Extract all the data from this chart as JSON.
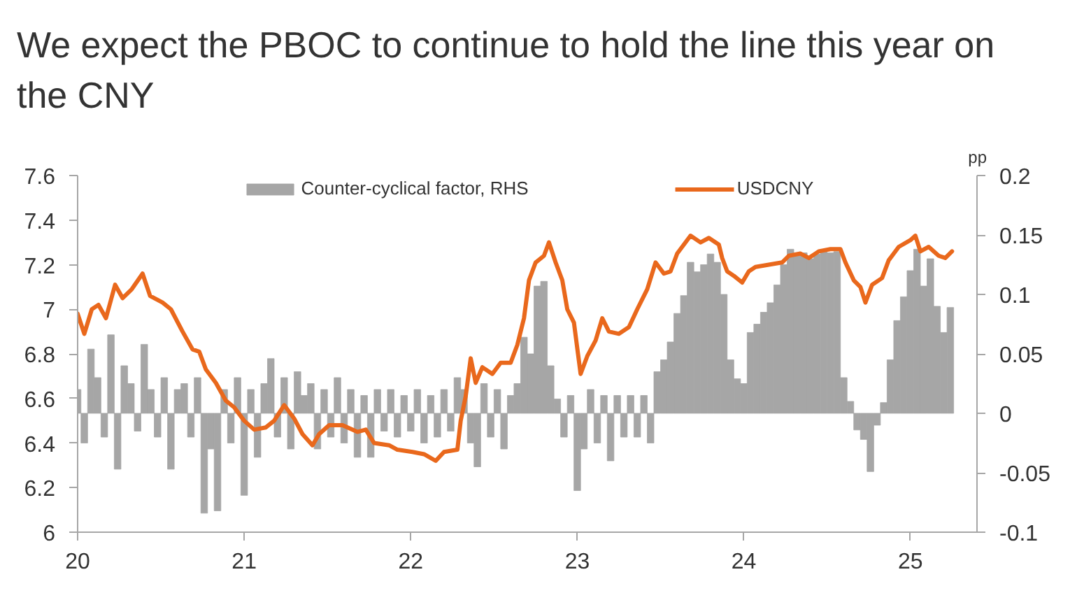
{
  "chart_data": {
    "type": "line",
    "title": "We expect the PBOC to continue to hold the line this year on the CNY",
    "y2label": "pp",
    "xlim": [
      20,
      25.4
    ],
    "xticks": [
      20,
      21,
      22,
      23,
      24,
      25
    ],
    "ylim": [
      6,
      7.6
    ],
    "yticks": [
      6,
      6.2,
      6.4,
      6.6,
      6.8,
      7,
      7.2,
      7.4,
      7.6
    ],
    "y2lim": [
      -0.1,
      0.2
    ],
    "y2ticks": [
      -0.1,
      -0.05,
      0,
      0.05,
      0.1,
      0.15,
      0.2
    ],
    "grid": false,
    "legend": "top",
    "series": [
      {
        "name": "Counter-cyclical factor, RHS",
        "type": "bar",
        "axis": "y2",
        "color": "#a6a6a6",
        "x": [
          20,
          20.04,
          20.08,
          20.12,
          20.16,
          20.2,
          20.24,
          20.28,
          20.32,
          20.36,
          20.4,
          20.44,
          20.48,
          20.52,
          20.56,
          20.6,
          20.64,
          20.68,
          20.72,
          20.76,
          20.8,
          20.84,
          20.88,
          20.92,
          20.96,
          21,
          21.04,
          21.08,
          21.12,
          21.16,
          21.2,
          21.24,
          21.28,
          21.32,
          21.36,
          21.4,
          21.44,
          21.48,
          21.52,
          21.56,
          21.6,
          21.64,
          21.68,
          21.72,
          21.76,
          21.8,
          21.84,
          21.88,
          21.92,
          21.96,
          22,
          22.04,
          22.08,
          22.12,
          22.16,
          22.2,
          22.24,
          22.28,
          22.32,
          22.36,
          22.4,
          22.44,
          22.48,
          22.52,
          22.56,
          22.6,
          22.64,
          22.68,
          22.72,
          22.76,
          22.8,
          22.84,
          22.88,
          22.92,
          22.96,
          23,
          23.04,
          23.08,
          23.12,
          23.16,
          23.2,
          23.24,
          23.28,
          23.32,
          23.36,
          23.4,
          23.44,
          23.48,
          23.52,
          23.56,
          23.6,
          23.64,
          23.68,
          23.72,
          23.76,
          23.8,
          23.84,
          23.88,
          23.92,
          23.96,
          24,
          24.04,
          24.08,
          24.12,
          24.16,
          24.2,
          24.24,
          24.28,
          24.32,
          24.36,
          24.4,
          24.44,
          24.48,
          24.52,
          24.56,
          24.6,
          24.64,
          24.68,
          24.72,
          24.76,
          24.8,
          24.84,
          24.88,
          24.92,
          24.96,
          25,
          25.04,
          25.08,
          25.12,
          25.16,
          25.2,
          25.24
        ],
        "values": [
          0.02,
          -0.025,
          0.054,
          0.03,
          -0.02,
          0.066,
          -0.047,
          0.04,
          0.025,
          -0.015,
          0.058,
          0.02,
          -0.02,
          0.03,
          -0.047,
          0.02,
          0.025,
          -0.02,
          0.03,
          -0.084,
          -0.03,
          -0.082,
          0.02,
          -0.025,
          0.03,
          -0.069,
          0.02,
          -0.037,
          0.025,
          0.046,
          -0.02,
          0.03,
          -0.03,
          0.035,
          0.015,
          0.025,
          -0.03,
          0.02,
          -0.02,
          0.03,
          -0.025,
          0.02,
          -0.037,
          0.015,
          -0.037,
          0.02,
          -0.015,
          0.02,
          -0.02,
          0.015,
          -0.015,
          0.02,
          -0.025,
          0.015,
          -0.02,
          0.02,
          -0.015,
          0.03,
          0.02,
          -0.025,
          -0.045,
          0.025,
          -0.02,
          0.02,
          -0.03,
          0.015,
          0.025,
          0.064,
          0.05,
          0.107,
          0.111,
          0.04,
          0.012,
          -0.02,
          0.015,
          -0.065,
          -0.03,
          0.02,
          -0.025,
          0.015,
          -0.04,
          0.015,
          -0.02,
          0.015,
          -0.02,
          0.015,
          -0.025,
          0.035,
          0.045,
          0.06,
          0.084,
          0.099,
          0.127,
          0.119,
          0.125,
          0.134,
          0.127,
          0.1,
          0.045,
          0.029,
          0.025,
          0.068,
          0.075,
          0.085,
          0.093,
          0.108,
          0.125,
          0.138,
          0.133,
          0.135,
          0.13,
          0.134,
          0.136,
          0.135,
          0.136,
          0.03,
          0.01,
          -0.014,
          -0.022,
          -0.049,
          -0.01,
          0.009,
          0.045,
          0.078,
          0.098,
          0.12,
          0.138,
          0.107,
          0.13,
          0.09,
          0.068,
          0.089
        ]
      },
      {
        "name": "USDCNY",
        "color": "#e9681c",
        "x": [
          20,
          20.04,
          20.085,
          20.125,
          20.17,
          20.225,
          20.27,
          20.325,
          20.39,
          20.435,
          20.51,
          20.56,
          20.63,
          20.69,
          20.73,
          20.77,
          20.83,
          20.89,
          20.94,
          21,
          21.06,
          21.13,
          21.18,
          21.24,
          21.3,
          21.35,
          21.41,
          21.45,
          21.51,
          21.59,
          21.68,
          21.73,
          21.78,
          21.87,
          21.92,
          22.01,
          22.08,
          22.15,
          22.2,
          22.28,
          22.3,
          22.33,
          22.36,
          22.39,
          22.43,
          22.49,
          22.54,
          22.6,
          22.64,
          22.68,
          22.71,
          22.75,
          22.8,
          22.83,
          22.87,
          22.91,
          22.94,
          22.98,
          23.02,
          23.06,
          23.11,
          23.15,
          23.19,
          23.25,
          23.31,
          23.36,
          23.42,
          23.47,
          23.52,
          23.56,
          23.6,
          23.64,
          23.68,
          23.74,
          23.79,
          23.85,
          23.87,
          23.9,
          23.94,
          23.99,
          24.03,
          24.07,
          24.15,
          24.23,
          24.27,
          24.34,
          24.39,
          24.45,
          24.52,
          24.58,
          24.61,
          24.66,
          24.7,
          24.73,
          24.77,
          24.83,
          24.87,
          24.93,
          25,
          25.03,
          25.06,
          25.11,
          25.17,
          25.21,
          25.25
        ],
        "values": [
          6.98,
          6.89,
          7.0,
          7.02,
          6.96,
          7.11,
          7.05,
          7.09,
          7.16,
          7.06,
          7.03,
          7.0,
          6.9,
          6.82,
          6.81,
          6.73,
          6.67,
          6.59,
          6.56,
          6.5,
          6.46,
          6.47,
          6.5,
          6.57,
          6.51,
          6.44,
          6.39,
          6.44,
          6.48,
          6.48,
          6.45,
          6.46,
          6.4,
          6.39,
          6.37,
          6.36,
          6.35,
          6.32,
          6.36,
          6.37,
          6.5,
          6.61,
          6.78,
          6.67,
          6.74,
          6.71,
          6.76,
          6.76,
          6.84,
          6.96,
          7.13,
          7.21,
          7.24,
          7.3,
          7.21,
          7.13,
          7.0,
          6.94,
          6.71,
          6.79,
          6.86,
          6.96,
          6.9,
          6.89,
          6.92,
          7.0,
          7.09,
          7.21,
          7.16,
          7.17,
          7.25,
          7.29,
          7.33,
          7.3,
          7.32,
          7.29,
          7.23,
          7.17,
          7.15,
          7.12,
          7.17,
          7.19,
          7.2,
          7.21,
          7.24,
          7.25,
          7.23,
          7.26,
          7.27,
          7.27,
          7.21,
          7.13,
          7.1,
          7.03,
          7.11,
          7.14,
          7.22,
          7.28,
          7.31,
          7.33,
          7.26,
          7.28,
          7.24,
          7.23,
          7.26
        ]
      }
    ]
  }
}
